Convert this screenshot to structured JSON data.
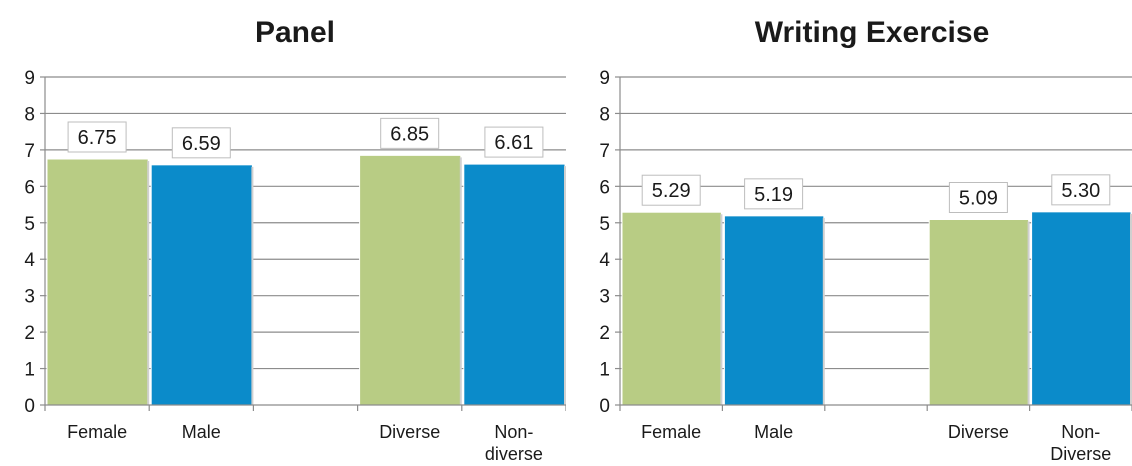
{
  "chart_data": [
    {
      "type": "bar",
      "title": "Panel",
      "categories": [
        [
          "Female"
        ],
        [
          "Male"
        ],
        [],
        [
          "Diverse"
        ],
        [
          "Non-",
          "diverse"
        ]
      ],
      "values": [
        6.75,
        6.59,
        null,
        6.85,
        6.61
      ],
      "labels": [
        "6.75",
        "6.59",
        "",
        "6.85",
        "6.61"
      ],
      "bar_colors": [
        "#b8cc84",
        "#0b8bca",
        null,
        "#b8cc84",
        "#0b8bca"
      ],
      "ylim": [
        0,
        9
      ],
      "yticks": [
        0,
        1,
        2,
        3,
        4,
        5,
        6,
        7,
        8,
        9
      ],
      "grid": true,
      "xlabel": "",
      "ylabel": ""
    },
    {
      "type": "bar",
      "title": "Writing Exercise",
      "categories": [
        [
          "Female"
        ],
        [
          "Male"
        ],
        [],
        [
          "Diverse"
        ],
        [
          "Non-",
          "Diverse"
        ]
      ],
      "values": [
        5.29,
        5.19,
        null,
        5.09,
        5.3
      ],
      "labels": [
        "5.29",
        "5.19",
        "",
        "5.09",
        "5.30"
      ],
      "bar_colors": [
        "#b8cc84",
        "#0b8bca",
        null,
        "#b8cc84",
        "#0b8bca"
      ],
      "ylim": [
        0,
        9
      ],
      "yticks": [
        0,
        1,
        2,
        3,
        4,
        5,
        6,
        7,
        8,
        9
      ],
      "grid": true,
      "xlabel": "",
      "ylabel": ""
    }
  ]
}
